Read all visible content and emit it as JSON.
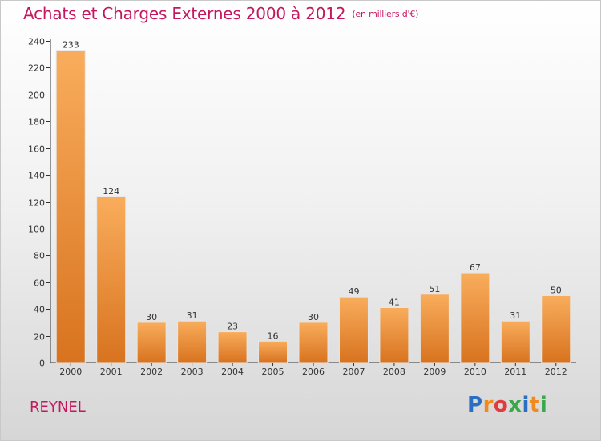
{
  "header": {
    "title": "Achats et Charges Externes 2000 à 2012",
    "unit": "(en milliers d'€)"
  },
  "footer": {
    "commune": "REYNEL",
    "logo_letters": [
      "P",
      "r",
      "o",
      "x",
      "i",
      "t",
      "i"
    ],
    "logo_colors": [
      "#2b6fc4",
      "#f08a1c",
      "#e23b3b",
      "#3aa84a",
      "#2b6fc4",
      "#f08a1c",
      "#3aa84a"
    ]
  },
  "colors": {
    "title": "#c4175e",
    "bar_light": "#f9ad5c",
    "bar_dark": "#d8731f",
    "axis": "#333333"
  },
  "chart_data": {
    "type": "bar",
    "title": "Achats et Charges Externes 2000 à 2012",
    "subtitle": "(en milliers d'€)",
    "categories": [
      "2000",
      "2001",
      "2002",
      "2003",
      "2004",
      "2005",
      "2006",
      "2007",
      "2008",
      "2009",
      "2010",
      "2011",
      "2012"
    ],
    "values": [
      233,
      124,
      30,
      31,
      23,
      16,
      30,
      49,
      41,
      51,
      67,
      31,
      50
    ],
    "ylim": [
      0,
      240
    ],
    "yticks": [
      0,
      20,
      40,
      60,
      80,
      100,
      120,
      140,
      160,
      180,
      200,
      220,
      240
    ],
    "grid": false,
    "data_labels": true
  }
}
